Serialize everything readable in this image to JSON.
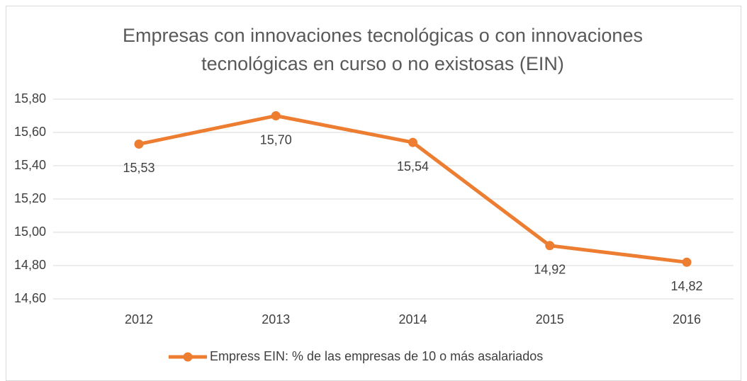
{
  "chart_data": {
    "type": "line",
    "title": "Empresas con innovaciones tecnológicas o con innovaciones tecnológicas en curso o no existosas (EIN)",
    "categories": [
      "2012",
      "2013",
      "2014",
      "2015",
      "2016"
    ],
    "series": [
      {
        "name": "Empress EIN: % de las empresas de 10 o más asalariados",
        "color": "#ed7d31",
        "values": [
          15.53,
          15.7,
          15.54,
          14.92,
          14.82
        ],
        "value_labels": [
          "15,53",
          "15,70",
          "15,54",
          "14,92",
          "14,82"
        ]
      }
    ],
    "ylim": [
      14.6,
      15.8
    ],
    "yticks": [
      {
        "value": 14.6,
        "label": "14,60"
      },
      {
        "value": 14.8,
        "label": "14,80"
      },
      {
        "value": 15.0,
        "label": "15,00"
      },
      {
        "value": 15.2,
        "label": "15,20"
      },
      {
        "value": 15.4,
        "label": "15,40"
      },
      {
        "value": 15.6,
        "label": "15,60"
      },
      {
        "value": 15.8,
        "label": "15,80"
      }
    ],
    "grid": true,
    "legend": "bottom"
  }
}
